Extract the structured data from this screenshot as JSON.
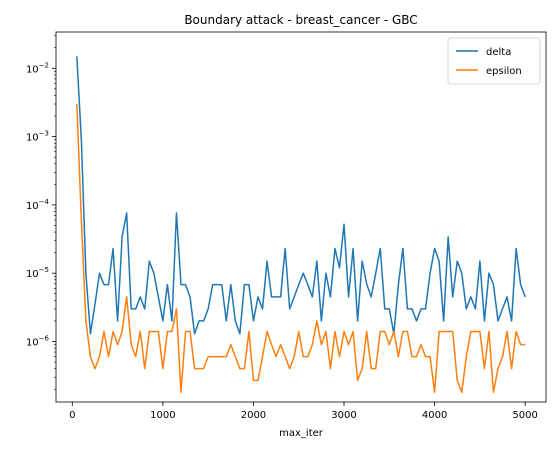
{
  "chart_data": {
    "type": "line",
    "title": "Boundary attack - breast_cancer - GBC",
    "xlabel": "max_iter",
    "ylabel": "",
    "xlim": [
      -180,
      5230
    ],
    "ylim": [
      1.3e-07,
      0.034
    ],
    "yscale": "log",
    "grid": false,
    "legend_position": "top-right",
    "x_ticks": [
      {
        "value": 0,
        "label": "0"
      },
      {
        "value": 1000,
        "label": "1000"
      },
      {
        "value": 2000,
        "label": "2000"
      },
      {
        "value": 3000,
        "label": "3000"
      },
      {
        "value": 4000,
        "label": "4000"
      },
      {
        "value": 5000,
        "label": "5000"
      }
    ],
    "y_ticks": [
      {
        "value": 1e-06,
        "base": "10",
        "exp": "−6"
      },
      {
        "value": 1e-05,
        "base": "10",
        "exp": "−5"
      },
      {
        "value": 0.0001,
        "base": "10",
        "exp": "−4"
      },
      {
        "value": 0.001,
        "base": "10",
        "exp": "−3"
      },
      {
        "value": 0.01,
        "base": "10",
        "exp": "−2"
      }
    ],
    "series": [
      {
        "name": "delta",
        "color": "#1f77b4",
        "x": [
          50,
          100,
          150,
          200,
          250,
          300,
          350,
          400,
          450,
          500,
          550,
          600,
          650,
          700,
          750,
          800,
          850,
          900,
          950,
          1000,
          1050,
          1100,
          1150,
          1200,
          1250,
          1300,
          1350,
          1400,
          1450,
          1500,
          1550,
          1600,
          1650,
          1700,
          1750,
          1800,
          1850,
          1900,
          1950,
          2000,
          2050,
          2100,
          2150,
          2200,
          2250,
          2300,
          2350,
          2400,
          2450,
          2500,
          2550,
          2600,
          2650,
          2700,
          2750,
          2800,
          2850,
          2900,
          2950,
          3000,
          3050,
          3100,
          3150,
          3200,
          3250,
          3300,
          3350,
          3400,
          3450,
          3500,
          3550,
          3600,
          3650,
          3700,
          3750,
          3800,
          3850,
          3900,
          3950,
          4000,
          4050,
          4100,
          4150,
          4200,
          4250,
          4300,
          4350,
          4400,
          4450,
          4500,
          4550,
          4600,
          4650,
          4700,
          4750,
          4800,
          4850,
          4900,
          4950,
          5000
        ],
        "values": [
          0.015,
          0.0009,
          1e-05,
          1.3e-06,
          3.5e-06,
          1e-05,
          6.8e-06,
          6.8e-06,
          2.3e-05,
          2e-06,
          3.4e-05,
          7.6e-05,
          3e-06,
          3e-06,
          4.5e-06,
          3e-06,
          1.5e-05,
          1e-05,
          4.5e-06,
          2e-06,
          6.8e-06,
          2e-06,
          7.6e-05,
          6.8e-06,
          6.8e-06,
          4.5e-06,
          1.3e-06,
          2e-06,
          2e-06,
          3e-06,
          6.8e-06,
          6.8e-06,
          6.8e-06,
          2e-06,
          6.8e-06,
          2e-06,
          1.3e-06,
          6.8e-06,
          6.8e-06,
          2e-06,
          4.5e-06,
          3e-06,
          1.5e-05,
          4.5e-06,
          4.5e-06,
          4.5e-06,
          2.3e-05,
          3e-06,
          4.5e-06,
          6.8e-06,
          1e-05,
          6.8e-06,
          4.5e-06,
          1.5e-05,
          2e-06,
          1e-05,
          4.5e-06,
          2.3e-05,
          1.2e-05,
          5.2e-05,
          4.5e-06,
          2.3e-05,
          2e-06,
          1.5e-05,
          7e-06,
          4.5e-06,
          1e-05,
          2.3e-05,
          3e-06,
          3e-06,
          1.3e-06,
          6.8e-06,
          2.3e-05,
          3e-06,
          3e-06,
          2e-06,
          3e-06,
          3e-06,
          1e-05,
          2.3e-05,
          1.5e-05,
          2e-06,
          3.4e-05,
          4.5e-06,
          1.5e-05,
          1e-05,
          3e-06,
          4.5e-06,
          3e-06,
          1.5e-05,
          2e-06,
          1e-05,
          6.8e-06,
          2e-06,
          3e-06,
          4.5e-06,
          2e-06,
          2.3e-05,
          6.8e-06,
          4.5e-06
        ]
      },
      {
        "name": "epsilon",
        "color": "#ff7f0e",
        "x": [
          50,
          100,
          150,
          200,
          250,
          300,
          350,
          400,
          450,
          500,
          550,
          600,
          650,
          700,
          750,
          800,
          850,
          900,
          950,
          1000,
          1050,
          1100,
          1150,
          1200,
          1250,
          1300,
          1350,
          1400,
          1450,
          1500,
          1550,
          1600,
          1650,
          1700,
          1750,
          1800,
          1850,
          1900,
          1950,
          2000,
          2050,
          2100,
          2150,
          2200,
          2250,
          2300,
          2350,
          2400,
          2450,
          2500,
          2550,
          2600,
          2650,
          2700,
          2750,
          2800,
          2850,
          2900,
          2950,
          3000,
          3050,
          3100,
          3150,
          3200,
          3250,
          3300,
          3350,
          3400,
          3450,
          3500,
          3550,
          3600,
          3650,
          3700,
          3750,
          3800,
          3850,
          3900,
          3950,
          4000,
          4050,
          4100,
          4150,
          4200,
          4250,
          4300,
          4350,
          4400,
          4450,
          4500,
          4550,
          4600,
          4650,
          4700,
          4750,
          4800,
          4850,
          4900,
          4950,
          5000
        ],
        "values": [
          0.003,
          6e-05,
          2e-06,
          6e-07,
          4e-07,
          6e-07,
          1.4e-06,
          6e-07,
          1.4e-06,
          9e-07,
          1.4e-06,
          4.5e-06,
          9e-07,
          6e-07,
          1.4e-06,
          4e-07,
          1.4e-06,
          1.4e-06,
          1.4e-06,
          4e-07,
          1.4e-06,
          1.4e-06,
          3e-06,
          1.8e-07,
          1.4e-06,
          1.4e-06,
          4e-07,
          4e-07,
          4e-07,
          6e-07,
          6e-07,
          6e-07,
          6e-07,
          6e-07,
          9e-07,
          6e-07,
          4e-07,
          4e-07,
          1.4e-06,
          2.7e-07,
          2.7e-07,
          6e-07,
          1.4e-06,
          9e-07,
          6e-07,
          9e-07,
          6e-07,
          4e-07,
          6e-07,
          1.4e-06,
          6e-07,
          6e-07,
          9e-07,
          2e-06,
          9e-07,
          1.4e-06,
          4e-07,
          1.4e-06,
          6e-07,
          1.4e-06,
          9e-07,
          1.4e-06,
          2.7e-07,
          4e-07,
          1.4e-06,
          4e-07,
          4e-07,
          1.4e-06,
          1.4e-06,
          9e-07,
          1.4e-06,
          6e-07,
          1.4e-06,
          1.4e-06,
          6e-07,
          6e-07,
          9e-07,
          6e-07,
          6e-07,
          1.8e-07,
          1.4e-06,
          1.4e-06,
          1.4e-06,
          1.4e-06,
          2.7e-07,
          1.8e-07,
          6e-07,
          1.4e-06,
          1.4e-06,
          1.4e-06,
          4e-07,
          1.4e-06,
          1.8e-07,
          4e-07,
          6e-07,
          1.4e-06,
          4e-07,
          1.4e-06,
          9e-07,
          9e-07
        ]
      }
    ]
  }
}
